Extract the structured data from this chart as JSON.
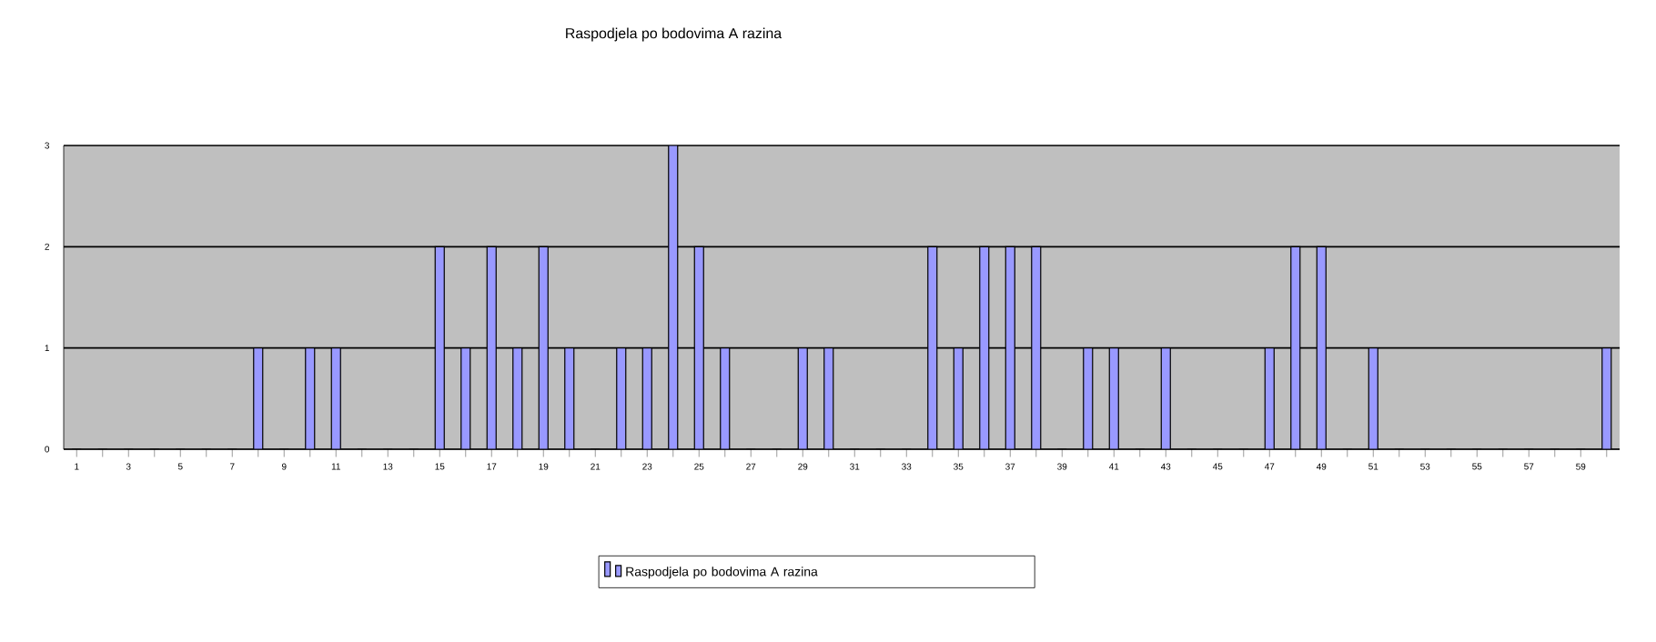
{
  "chart_data": {
    "type": "bar",
    "title": "Raspodjela po bodovima A razina",
    "categories": [
      "1",
      null,
      "3",
      null,
      "5",
      null,
      "7",
      null,
      "9",
      null,
      "11",
      null,
      "13",
      null,
      "15",
      null,
      "17",
      null,
      "19",
      null,
      "21",
      null,
      "23",
      null,
      "25",
      null,
      "27",
      null,
      "29",
      null,
      "31",
      null,
      "33",
      null,
      "35",
      null,
      "37",
      null,
      "39",
      null,
      "41",
      null,
      "43",
      null,
      "45",
      null,
      "47",
      null,
      "49",
      null,
      "51",
      null,
      "53",
      null,
      "55",
      null,
      "57",
      null,
      "59",
      null
    ],
    "series": [
      {
        "name": "Raspodjela po bodovima A razina",
        "color": "#9999ff",
        "values": [
          0,
          0,
          0,
          0,
          0,
          0,
          0,
          1,
          0,
          1,
          1,
          0,
          0,
          0,
          2,
          1,
          2,
          1,
          2,
          1,
          0,
          1,
          1,
          3,
          2,
          1,
          0,
          0,
          1,
          1,
          0,
          0,
          0,
          2,
          1,
          2,
          2,
          2,
          0,
          1,
          1,
          0,
          1,
          0,
          0,
          0,
          1,
          2,
          2,
          0,
          1,
          0,
          0,
          0,
          0,
          0,
          0,
          0,
          0,
          1
        ]
      }
    ],
    "ylim": [
      0,
      3
    ],
    "yticks": [
      0,
      1,
      2,
      3
    ],
    "grid": "y",
    "legend": "bottom"
  }
}
